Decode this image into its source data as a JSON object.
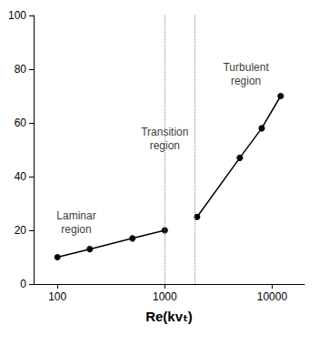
{
  "chart_data": {
    "type": "line",
    "xlabel": "Re(kvₜ)",
    "series": [
      {
        "x": [
          100,
          200,
          500,
          1000
        ],
        "values": [
          10,
          13,
          17,
          20
        ],
        "color": "#000000",
        "marker": "circle"
      },
      {
        "x": [
          2000,
          5000,
          8000,
          12000
        ],
        "values": [
          25,
          47,
          58,
          70
        ],
        "color": "#000000",
        "marker": "circle"
      }
    ],
    "xlim": [
      60,
      20000
    ],
    "xticks": [
      100,
      1000,
      10000
    ],
    "ylim": [
      0,
      100
    ],
    "yticks": [
      0,
      20,
      40,
      60,
      80,
      100
    ],
    "log": "x",
    "grid": false,
    "boundaries": [
      1000,
      1900
    ],
    "annotations": [
      {
        "text": "Laminar region",
        "x": 150,
        "y": 23
      },
      {
        "text": "Transition region",
        "x": 1000,
        "y": 54
      },
      {
        "text": "Turbulent region",
        "x": 5700,
        "y": 78
      }
    ]
  }
}
